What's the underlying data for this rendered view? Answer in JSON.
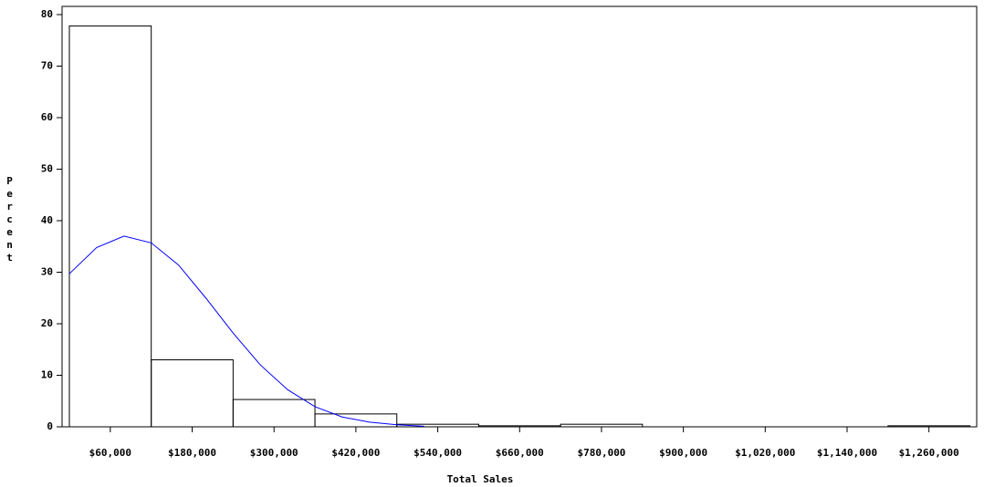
{
  "chart_data": {
    "type": "histogram",
    "x_label": "Total Sales",
    "y_label": "Percent",
    "bins": [
      0,
      120000,
      240000,
      360000,
      480000,
      600000,
      720000,
      840000,
      960000,
      1080000,
      1200000,
      1320000
    ],
    "values": [
      77.8,
      13.0,
      5.3,
      2.5,
      0.5,
      0.2,
      0.5,
      0,
      0,
      0,
      0.2
    ],
    "color": "#000000",
    "curve": {
      "color": "#0000ff",
      "x": [
        0,
        40000,
        80000,
        120000,
        160000,
        200000,
        240000,
        280000,
        320000,
        360000,
        400000,
        440000,
        480000,
        520000
      ],
      "values": [
        29.7,
        34.8,
        37.0,
        35.7,
        31.4,
        25.0,
        18.2,
        12.0,
        7.2,
        3.9,
        1.9,
        0.9,
        0.4,
        0.1
      ]
    },
    "xlim": [
      -10700,
      1330000
    ],
    "xticks": [
      {
        "value": 60000,
        "label": "$60,000"
      },
      {
        "value": 180000,
        "label": "$180,000"
      },
      {
        "value": 300000,
        "label": "$300,000"
      },
      {
        "value": 420000,
        "label": "$420,000"
      },
      {
        "value": 540000,
        "label": "$540,000"
      },
      {
        "value": 660000,
        "label": "$660,000"
      },
      {
        "value": 780000,
        "label": "$780,000"
      },
      {
        "value": 900000,
        "label": "$900,000"
      },
      {
        "value": 1020000,
        "label": "$1,020,000"
      },
      {
        "value": 1140000,
        "label": "$1,140,000"
      },
      {
        "value": 1260000,
        "label": "$1,260,000"
      }
    ],
    "ylim": [
      0,
      80
    ],
    "yticks": [
      0,
      10,
      20,
      30,
      40,
      50,
      60,
      70,
      80
    ]
  }
}
